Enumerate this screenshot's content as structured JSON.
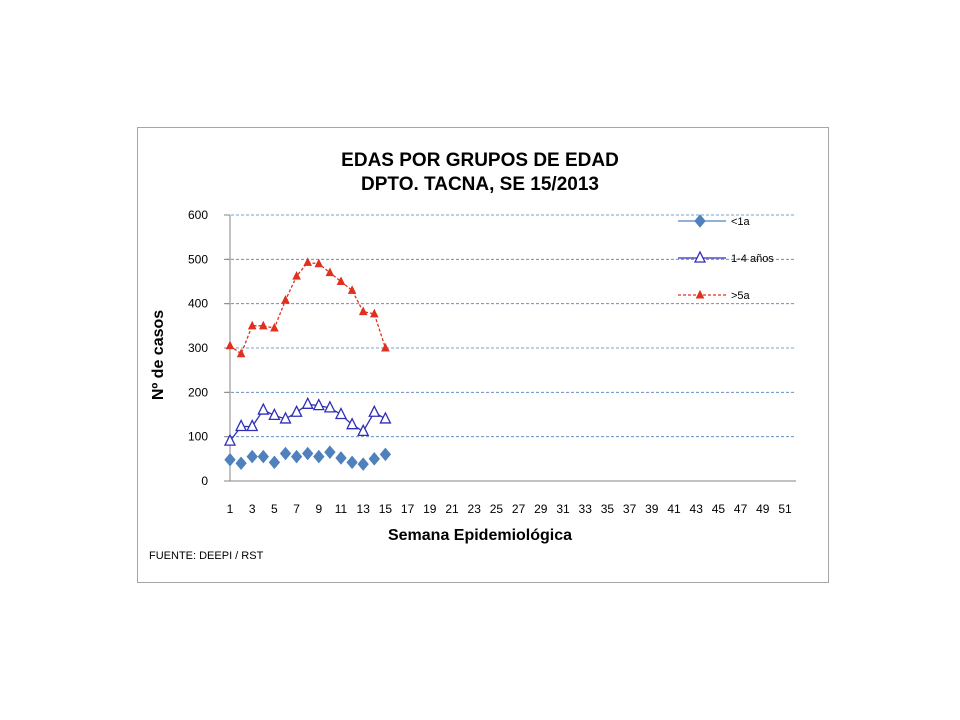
{
  "chart_data": {
    "type": "line",
    "title": "EDAS POR GRUPOS DE EDAD",
    "subtitle": "DPTO. TACNA, SE  15/2013",
    "xlabel": "Semana Epidemiológica",
    "ylabel": "Nº de casos",
    "ylim": [
      0,
      600
    ],
    "yticks": [
      0,
      100,
      200,
      300,
      400,
      500,
      600
    ],
    "xlim": [
      1,
      52
    ],
    "xticks": [
      "1",
      "3",
      "5",
      "7",
      "9",
      "11",
      "13",
      "15",
      "17",
      "19",
      "21",
      "23",
      "25",
      "27",
      "29",
      "31",
      "33",
      "35",
      "37",
      "39",
      "41",
      "43",
      "45",
      "47",
      "49",
      "51"
    ],
    "grid": "horizontal dashed",
    "legend_position": "top-right",
    "x": [
      1,
      2,
      3,
      4,
      5,
      6,
      7,
      8,
      9,
      10,
      11,
      12,
      13,
      14,
      15
    ],
    "series": [
      {
        "name": "<1a",
        "color": "#4f81bd",
        "line_style": "solid",
        "marker": "diamond",
        "values": [
          48,
          40,
          55,
          55,
          42,
          62,
          55,
          62,
          55,
          65,
          52,
          42,
          38,
          50,
          60
        ]
      },
      {
        "name": "1-4 años",
        "color": "#2e2eb8",
        "line_style": "solid",
        "marker": "triangle-open",
        "values": [
          90,
          123,
          123,
          160,
          148,
          140,
          155,
          173,
          170,
          165,
          150,
          127,
          112,
          155,
          140
        ]
      },
      {
        "name": ">5a",
        "color": "#e0301e",
        "line_style": "dashed",
        "marker": "triangle",
        "values": [
          305,
          287,
          350,
          350,
          345,
          408,
          462,
          493,
          490,
          470,
          450,
          430,
          382,
          377,
          300
        ]
      }
    ],
    "source": "FUENTE: DEEPI  / RST"
  }
}
